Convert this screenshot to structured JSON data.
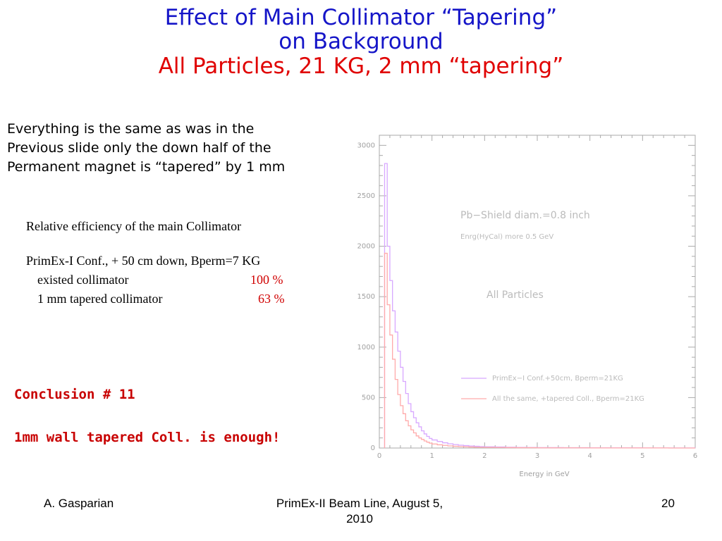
{
  "slide": {
    "title_line1": "Effect of Main Collimator “Tapering”",
    "title_line2": "on Background",
    "title_line3": "All Particles,   21 KG, 2 mm “tapering”"
  },
  "intro": {
    "lines": [
      "Everything is the same as was in the",
      "Previous slide only the down half of the",
      "Permanent magnet is “tapered” by 1 mm"
    ]
  },
  "efficiency": {
    "heading": "Relative efficiency of the main Collimator",
    "config": "PrimEx-I Conf., + 50 cm down, Bperm=7 KG",
    "rows": [
      {
        "label": "existed collimator",
        "value": "100 %"
      },
      {
        "label": "1 mm tapered collimator",
        "value": "63 %"
      }
    ]
  },
  "conclusion": {
    "title": "Conclusion # 11",
    "text": "1mm wall tapered Coll. is enough!"
  },
  "chart_data": {
    "type": "line",
    "xlabel": "Energy in GeV",
    "ylabel": "",
    "xlim": [
      0,
      6
    ],
    "ylim": [
      0,
      3100
    ],
    "x_ticks": [
      0,
      1,
      2,
      3,
      4,
      5,
      6
    ],
    "y_ticks": [
      0,
      500,
      1000,
      1500,
      2000,
      2500,
      3000
    ],
    "annotations": [
      "Pb−Shield diam.=0.8 inch",
      "Enrg(HyCal) more 0.5 GeV",
      "All Particles"
    ],
    "x": [
      0.1,
      0.15,
      0.2,
      0.25,
      0.3,
      0.35,
      0.4,
      0.45,
      0.5,
      0.55,
      0.6,
      0.65,
      0.7,
      0.75,
      0.8,
      0.85,
      0.9,
      0.95,
      1.0,
      1.1,
      1.2,
      1.3,
      1.4,
      1.5,
      1.6,
      1.7,
      1.8,
      1.9,
      2.0,
      2.2,
      2.4,
      2.6,
      2.8,
      3.0,
      3.5,
      4.0,
      4.5,
      5.0,
      5.5,
      6.0
    ],
    "series": [
      {
        "name": "PrimEx−I Conf.+50cm, Bperm=21KG",
        "color": "#d8a8ff",
        "values": [
          2820,
          2000,
          1660,
          1360,
          1150,
          960,
          800,
          660,
          540,
          440,
          360,
          300,
          250,
          210,
          170,
          140,
          115,
          95,
          80,
          65,
          52,
          42,
          34,
          28,
          24,
          20,
          17,
          14,
          12,
          10,
          8,
          6,
          5,
          4,
          3,
          2,
          2,
          1,
          1,
          0
        ]
      },
      {
        "name": "All the same, +tapered Coll., Bperm=21KG",
        "color": "#ffaaaa",
        "values": [
          1930,
          1420,
          1120,
          880,
          680,
          530,
          420,
          340,
          270,
          220,
          180,
          150,
          120,
          100,
          85,
          70,
          58,
          48,
          40,
          32,
          26,
          21,
          17,
          14,
          12,
          10,
          8,
          7,
          6,
          5,
          4,
          3,
          3,
          2,
          2,
          1,
          1,
          1,
          0,
          0
        ]
      }
    ],
    "colors": {
      "axis": "#aaaaaa",
      "tick_text": "#a0a0a0",
      "annotation": "#bbbbbb"
    }
  },
  "footer": {
    "author": "A. Gasparian",
    "event_line1": "PrimEx-II Beam Line, August 5,",
    "event_line2": "2010",
    "page": "20"
  }
}
